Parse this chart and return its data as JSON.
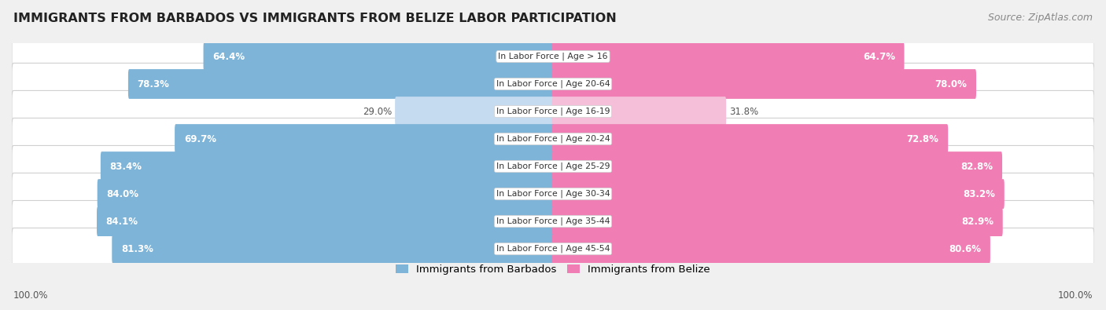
{
  "title": "IMMIGRANTS FROM BARBADOS VS IMMIGRANTS FROM BELIZE LABOR PARTICIPATION",
  "source": "Source: ZipAtlas.com",
  "categories": [
    "In Labor Force | Age > 16",
    "In Labor Force | Age 20-64",
    "In Labor Force | Age 16-19",
    "In Labor Force | Age 20-24",
    "In Labor Force | Age 25-29",
    "In Labor Force | Age 30-34",
    "In Labor Force | Age 35-44",
    "In Labor Force | Age 45-54"
  ],
  "barbados_values": [
    64.4,
    78.3,
    29.0,
    69.7,
    83.4,
    84.0,
    84.1,
    81.3
  ],
  "belize_values": [
    64.7,
    78.0,
    31.8,
    72.8,
    82.8,
    83.2,
    82.9,
    80.6
  ],
  "barbados_color": "#7EB4D8",
  "belize_color": "#F07EB4",
  "barbados_color_light": "#C5DCF0",
  "belize_color_light": "#F5BFD9",
  "background_color": "#f0f0f0",
  "row_bg_color": "#ffffff",
  "max_val": 100.0,
  "legend_label_barbados": "Immigrants from Barbados",
  "legend_label_belize": "Immigrants from Belize",
  "title_fontsize": 11.5,
  "source_fontsize": 9,
  "bar_label_fontsize": 8.5,
  "category_fontsize": 7.8,
  "light_row_index": 2
}
